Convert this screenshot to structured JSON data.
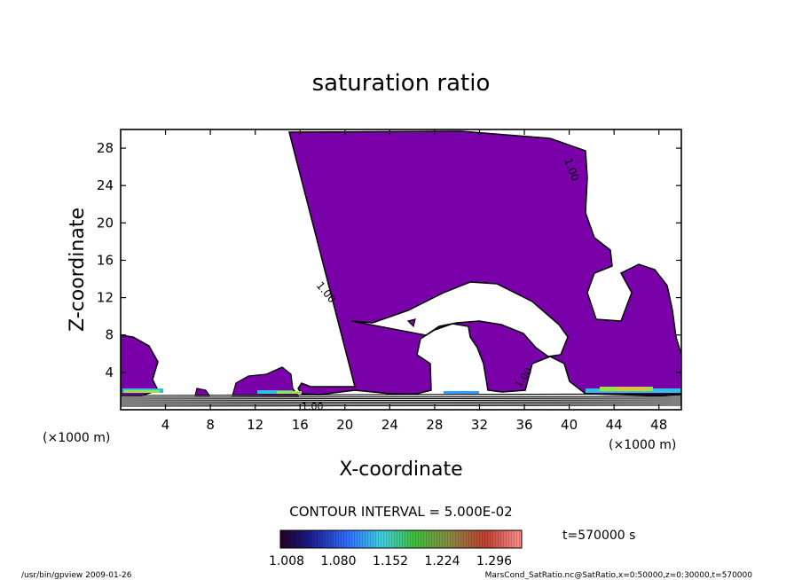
{
  "chart_data": {
    "type": "contour",
    "title": "saturation ratio",
    "xlabel": "X-coordinate",
    "ylabel": "Z-coordinate",
    "x_unit": "(×1000 m)",
    "y_unit": "(×1000 m)",
    "xlim": [
      0,
      50
    ],
    "ylim": [
      0,
      30
    ],
    "x_ticks": [
      "4",
      "8",
      "12",
      "16",
      "20",
      "24",
      "28",
      "32",
      "36",
      "40",
      "44",
      "48"
    ],
    "y_ticks": [
      "4",
      "8",
      "12",
      "16",
      "20",
      "24",
      "28"
    ],
    "contour_interval_label": "CONTOUR INTERVAL = 5.000E-02",
    "contour_labels": [
      "1.00",
      "1.00",
      "1.00",
      "1.00"
    ],
    "time_label": "t=570000 s",
    "colorbar_ticks": [
      "1.008",
      "1.080",
      "1.152",
      "1.224",
      "1.296"
    ],
    "fill_color": "#7a00aa",
    "grid": false
  },
  "footer": {
    "left": "/usr/bin/gpview   2009-01-26",
    "right": "MarsCond_SatRatio.nc@SatRatio,x=0:50000,z=0:30000,t=570000"
  }
}
